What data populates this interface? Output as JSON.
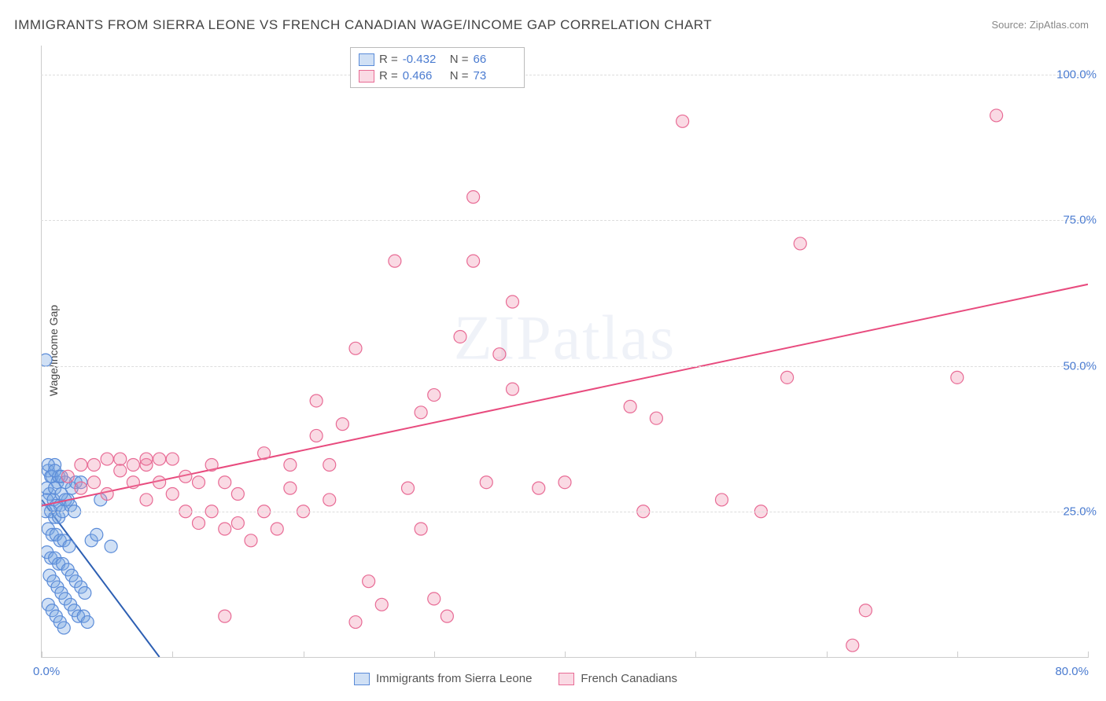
{
  "title": "IMMIGRANTS FROM SIERRA LEONE VS FRENCH CANADIAN WAGE/INCOME GAP CORRELATION CHART",
  "source": "Source: ZipAtlas.com",
  "watermark": "ZIPatlas",
  "chart": {
    "type": "scatter",
    "ylabel": "Wage/Income Gap",
    "xlim": [
      0,
      80
    ],
    "ylim": [
      0,
      105
    ],
    "xtick_positions": [
      0,
      10,
      20,
      30,
      40,
      50,
      60,
      70,
      80
    ],
    "ytick_positions": [
      25,
      50,
      75,
      100
    ],
    "ytick_labels": [
      "25.0%",
      "50.0%",
      "75.0%",
      "100.0%"
    ],
    "xorigin_label": "0.0%",
    "xmax_label": "80.0%",
    "background_color": "#ffffff",
    "grid_color": "#dddddd",
    "axis_color": "#cccccc",
    "tick_label_color": "#4a7bd0",
    "label_fontsize": 14,
    "tick_fontsize": 15,
    "marker_radius": 8,
    "marker_stroke_width": 1.2,
    "line_width": 2,
    "series": [
      {
        "name": "Immigrants from Sierra Leone",
        "fill": "rgba(120,165,225,0.35)",
        "stroke": "#5a8bd8",
        "line_color": "#2d5fb3",
        "R": "-0.432",
        "N": "66",
        "trend": {
          "x1": 0,
          "y1": 27,
          "x2": 9,
          "y2": 0
        },
        "points": [
          [
            0.3,
            51
          ],
          [
            0.5,
            32
          ],
          [
            0.8,
            31
          ],
          [
            1.0,
            33
          ],
          [
            1.2,
            30
          ],
          [
            0.6,
            28
          ],
          [
            0.4,
            27
          ],
          [
            0.9,
            27
          ],
          [
            1.1,
            26
          ],
          [
            1.4,
            26
          ],
          [
            0.3,
            25
          ],
          [
            0.7,
            25
          ],
          [
            1.0,
            24
          ],
          [
            1.3,
            24
          ],
          [
            1.6,
            25
          ],
          [
            2.0,
            27
          ],
          [
            2.3,
            29
          ],
          [
            2.6,
            30
          ],
          [
            3.0,
            30
          ],
          [
            0.5,
            22
          ],
          [
            0.8,
            21
          ],
          [
            1.1,
            21
          ],
          [
            1.4,
            20
          ],
          [
            1.7,
            20
          ],
          [
            2.1,
            19
          ],
          [
            0.4,
            18
          ],
          [
            0.7,
            17
          ],
          [
            1.0,
            17
          ],
          [
            1.3,
            16
          ],
          [
            1.6,
            16
          ],
          [
            2.0,
            15
          ],
          [
            2.3,
            14
          ],
          [
            2.6,
            13
          ],
          [
            3.0,
            12
          ],
          [
            3.3,
            11
          ],
          [
            0.6,
            14
          ],
          [
            0.9,
            13
          ],
          [
            1.2,
            12
          ],
          [
            1.5,
            11
          ],
          [
            1.8,
            10
          ],
          [
            2.2,
            9
          ],
          [
            2.5,
            8
          ],
          [
            2.8,
            7
          ],
          [
            3.2,
            7
          ],
          [
            3.5,
            6
          ],
          [
            0.5,
            9
          ],
          [
            0.8,
            8
          ],
          [
            1.1,
            7
          ],
          [
            1.4,
            6
          ],
          [
            1.7,
            5
          ],
          [
            3.8,
            20
          ],
          [
            4.2,
            21
          ],
          [
            4.5,
            27
          ],
          [
            5.3,
            19
          ],
          [
            0.4,
            29
          ],
          [
            1.0,
            29
          ],
          [
            1.5,
            28
          ],
          [
            1.8,
            27
          ],
          [
            2.2,
            26
          ],
          [
            2.5,
            25
          ],
          [
            0.7,
            31
          ],
          [
            1.3,
            31
          ],
          [
            1.8,
            30
          ],
          [
            0.5,
            33
          ],
          [
            1.0,
            32
          ],
          [
            1.5,
            31
          ]
        ]
      },
      {
        "name": "French Canadians",
        "fill": "rgba(240,140,170,0.32)",
        "stroke": "#e86b95",
        "line_color": "#e84b7e",
        "R": "0.466",
        "N": "73",
        "trend": {
          "x1": 0,
          "y1": 26,
          "x2": 80,
          "y2": 64
        },
        "points": [
          [
            2,
            31
          ],
          [
            3,
            29
          ],
          [
            3,
            33
          ],
          [
            4,
            30
          ],
          [
            4,
            33
          ],
          [
            5,
            34
          ],
          [
            5,
            28
          ],
          [
            6,
            32
          ],
          [
            6,
            34
          ],
          [
            7,
            30
          ],
          [
            7,
            33
          ],
          [
            8,
            33
          ],
          [
            8,
            27
          ],
          [
            9,
            30
          ],
          [
            9,
            34
          ],
          [
            10,
            34
          ],
          [
            10,
            28
          ],
          [
            11,
            31
          ],
          [
            11,
            25
          ],
          [
            12,
            30
          ],
          [
            12,
            23
          ],
          [
            13,
            25
          ],
          [
            13,
            33
          ],
          [
            14,
            22
          ],
          [
            14,
            30
          ],
          [
            15,
            28
          ],
          [
            15,
            23
          ],
          [
            16,
            20
          ],
          [
            17,
            25
          ],
          [
            17,
            35
          ],
          [
            18,
            22
          ],
          [
            19,
            29
          ],
          [
            19,
            33
          ],
          [
            20,
            25
          ],
          [
            21,
            38
          ],
          [
            21,
            44
          ],
          [
            22,
            27
          ],
          [
            22,
            33
          ],
          [
            23,
            40
          ],
          [
            24,
            6
          ],
          [
            24,
            53
          ],
          [
            25,
            13
          ],
          [
            26,
            9
          ],
          [
            27,
            68
          ],
          [
            28,
            29
          ],
          [
            29,
            42
          ],
          [
            30,
            10
          ],
          [
            30,
            45
          ],
          [
            31,
            7
          ],
          [
            32,
            55
          ],
          [
            33,
            79
          ],
          [
            33,
            68
          ],
          [
            34,
            30
          ],
          [
            35,
            52
          ],
          [
            36,
            61
          ],
          [
            36,
            46
          ],
          [
            38,
            29
          ],
          [
            40,
            30
          ],
          [
            45,
            43
          ],
          [
            46,
            25
          ],
          [
            47,
            41
          ],
          [
            49,
            92
          ],
          [
            52,
            27
          ],
          [
            55,
            25
          ],
          [
            57,
            48
          ],
          [
            58,
            71
          ],
          [
            62,
            2
          ],
          [
            63,
            8
          ],
          [
            70,
            48
          ],
          [
            73,
            93
          ],
          [
            14,
            7
          ],
          [
            29,
            22
          ],
          [
            8,
            34
          ]
        ]
      }
    ],
    "legend_bottom": [
      {
        "label": "Immigrants from Sierra Leone",
        "fill": "rgba(120,165,225,0.35)",
        "stroke": "#5a8bd8"
      },
      {
        "label": "French Canadians",
        "fill": "rgba(240,140,170,0.32)",
        "stroke": "#e86b95"
      }
    ],
    "stats_box": {
      "r_label": "R =",
      "n_label": "N ="
    }
  }
}
